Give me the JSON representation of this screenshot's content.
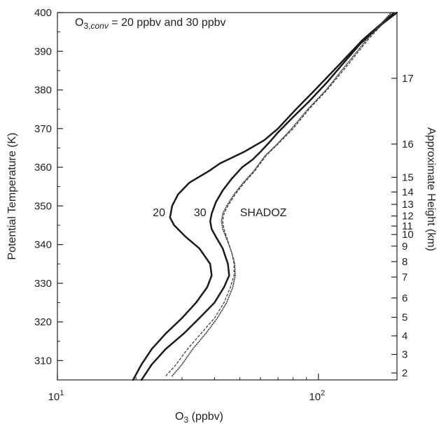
{
  "chart_data": {
    "type": "line",
    "title": "",
    "annotation": {
      "prefix": "O",
      "sub": "3,",
      "sub_italic": "conv",
      "text": " =  20 ppbv and 30 ppbv"
    },
    "xlabel": {
      "main": "O",
      "sub": "3",
      "rest": " (ppbv)"
    },
    "ylabel": "Potential Temperature (K)",
    "y2label": "Approximate Height (km)",
    "x_scale": "log",
    "xlim": [
      10,
      200
    ],
    "ylim": [
      305,
      400
    ],
    "x_ticks": [
      {
        "value": 10,
        "base": "10",
        "exp": "1"
      },
      {
        "value": 100,
        "base": "10",
        "exp": "2"
      }
    ],
    "y_ticks": [
      310,
      320,
      330,
      340,
      350,
      360,
      370,
      380,
      390,
      400
    ],
    "y_tick_labels": [
      "310",
      "320",
      "330",
      "340",
      "350",
      "360",
      "370",
      "380",
      "390",
      "400"
    ],
    "height_ticks": [
      {
        "label": "2",
        "theta": 306.8
      },
      {
        "label": "3",
        "theta": 311.6
      },
      {
        "label": "4",
        "theta": 316.4
      },
      {
        "label": "5",
        "theta": 321.2
      },
      {
        "label": "6",
        "theta": 326.2
      },
      {
        "label": "7",
        "theta": 331.6
      },
      {
        "label": "8",
        "theta": 335.6
      },
      {
        "label": "9",
        "theta": 339.6
      },
      {
        "label": "10",
        "theta": 342.6
      },
      {
        "label": "11",
        "theta": 344.8
      },
      {
        "label": "12",
        "theta": 347.4
      },
      {
        "label": "13",
        "theta": 350.4
      },
      {
        "label": "14",
        "theta": 353.6
      },
      {
        "label": "15",
        "theta": 357.4
      },
      {
        "label": "16",
        "theta": 366.0
      },
      {
        "label": "17",
        "theta": 383.0
      }
    ],
    "series": [
      {
        "label": "20",
        "style": "dotted-bold",
        "points": [
          [
            19.5,
            305
          ],
          [
            21,
            309
          ],
          [
            23,
            313
          ],
          [
            26,
            317
          ],
          [
            30,
            321
          ],
          [
            34,
            325
          ],
          [
            37.5,
            329
          ],
          [
            39,
            332
          ],
          [
            38.5,
            335
          ],
          [
            35,
            339
          ],
          [
            31,
            342
          ],
          [
            28,
            345
          ],
          [
            27,
            347
          ],
          [
            27.5,
            350
          ],
          [
            29,
            353
          ],
          [
            32,
            356
          ],
          [
            38,
            359
          ],
          [
            42,
            361
          ],
          [
            52,
            364
          ],
          [
            62,
            367
          ],
          [
            70,
            370
          ],
          [
            82,
            375
          ],
          [
            97,
            380
          ],
          [
            118,
            386
          ],
          [
            148,
            393
          ],
          [
            195,
            400
          ]
        ]
      },
      {
        "label": "30",
        "style": "dotted-bold",
        "points": [
          [
            21,
            305
          ],
          [
            23,
            309
          ],
          [
            26,
            313
          ],
          [
            30.5,
            317
          ],
          [
            35,
            321
          ],
          [
            40,
            325
          ],
          [
            43.5,
            329
          ],
          [
            45.5,
            332
          ],
          [
            45,
            335
          ],
          [
            43,
            339
          ],
          [
            40.5,
            342
          ],
          [
            39,
            344
          ],
          [
            38.5,
            346
          ],
          [
            39,
            348
          ],
          [
            40.5,
            351
          ],
          [
            43,
            354
          ],
          [
            46.5,
            357
          ],
          [
            51,
            360
          ],
          [
            56,
            362
          ],
          [
            60,
            364
          ],
          [
            65,
            366.5
          ],
          [
            70,
            369
          ],
          [
            80,
            373
          ],
          [
            92,
            377
          ],
          [
            108,
            382
          ],
          [
            125,
            387
          ],
          [
            145,
            392
          ],
          [
            175,
            397
          ],
          [
            200,
            400
          ]
        ]
      },
      {
        "label": "SHADOZ",
        "style": "dashed-thin",
        "points": [
          [
            26,
            306
          ],
          [
            28.5,
            309
          ],
          [
            31.5,
            313
          ],
          [
            35.5,
            317
          ],
          [
            40,
            321
          ],
          [
            43.5,
            325
          ],
          [
            46,
            329
          ],
          [
            47.5,
            332
          ],
          [
            47.5,
            335
          ],
          [
            46.5,
            338
          ],
          [
            45,
            341
          ],
          [
            43.5,
            344
          ],
          [
            43,
            346
          ],
          [
            43.5,
            348
          ],
          [
            45,
            350
          ],
          [
            48,
            353
          ],
          [
            52,
            356
          ],
          [
            57,
            359
          ],
          [
            63,
            363
          ],
          [
            70,
            366
          ],
          [
            80,
            370
          ],
          [
            92,
            375
          ],
          [
            108,
            380
          ],
          [
            128,
            386
          ],
          [
            155,
            393
          ],
          [
            193,
            400
          ]
        ]
      },
      {
        "label": "",
        "style": "dotted-fine",
        "points": [
          [
            27.5,
            306
          ],
          [
            30,
            309
          ],
          [
            33,
            313
          ],
          [
            37,
            317
          ],
          [
            41,
            321
          ],
          [
            44.5,
            325
          ],
          [
            47,
            329
          ],
          [
            48,
            332
          ],
          [
            47.8,
            335
          ],
          [
            46.5,
            338
          ],
          [
            44.8,
            341
          ],
          [
            43,
            344
          ],
          [
            42.5,
            346
          ],
          [
            43,
            348
          ],
          [
            44.5,
            350
          ],
          [
            47.5,
            353
          ],
          [
            51.5,
            356
          ],
          [
            56.5,
            359
          ],
          [
            62.5,
            363
          ],
          [
            69.5,
            366
          ],
          [
            79,
            370
          ],
          [
            91,
            375
          ],
          [
            107,
            380
          ],
          [
            126,
            386
          ],
          [
            153,
            393
          ],
          [
            190,
            400
          ]
        ]
      }
    ],
    "label_positions_note": "",
    "curve_labels": [
      {
        "text": "20",
        "x": 24.5,
        "y": 347.3
      },
      {
        "text": "30",
        "x": 35.2,
        "y": 347.3
      },
      {
        "text": "SHADOZ",
        "x": 61.5,
        "y": 347.3
      }
    ]
  }
}
